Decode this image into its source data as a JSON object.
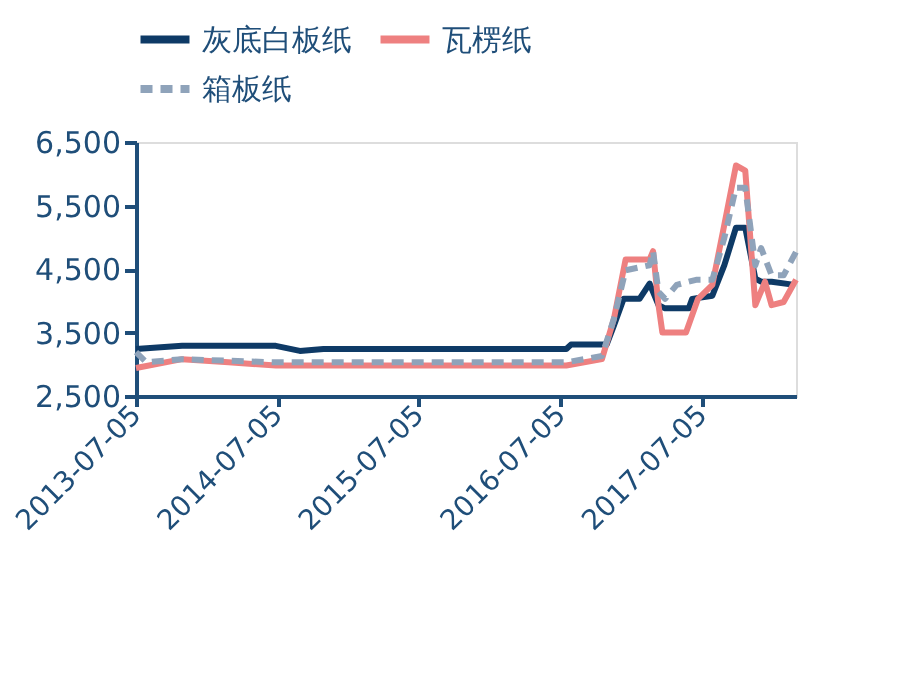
{
  "chart_data": {
    "type": "line",
    "xlim": [
      "2013-07-05",
      "2018-03-05"
    ],
    "xticks": [
      {
        "value": "2013-07-05",
        "label": "2013-07-05"
      },
      {
        "value": "2014-07-05",
        "label": "2014-07-05"
      },
      {
        "value": "2015-07-05",
        "label": "2015-07-05"
      },
      {
        "value": "2016-07-05",
        "label": "2016-07-05"
      },
      {
        "value": "2017-07-05",
        "label": "2017-07-05"
      }
    ],
    "ylim": [
      2500,
      6500
    ],
    "yticks": [
      {
        "value": 2500,
        "label": "2,500"
      },
      {
        "value": 3500,
        "label": "3,500"
      },
      {
        "value": 4500,
        "label": "4,500"
      },
      {
        "value": 5500,
        "label": "5,500"
      },
      {
        "value": 6500,
        "label": "6,500"
      }
    ],
    "grid": false,
    "legend": "top",
    "marker": "none",
    "series": [
      {
        "name": "灰底白板纸",
        "color": "#0e3a66",
        "line_style": "solid",
        "x": [
          "2013-07-05",
          "2013-11-01",
          "2014-07-01",
          "2014-09-01",
          "2014-11-01",
          "2016-07-20",
          "2016-08-01",
          "2016-11-01",
          "2016-11-20",
          "2016-12-15",
          "2017-01-25",
          "2017-02-20",
          "2017-03-15",
          "2017-04-01",
          "2017-06-01",
          "2017-06-10",
          "2017-08-01",
          "2017-09-01",
          "2017-10-01",
          "2017-10-25",
          "2017-11-20",
          "2017-12-05",
          "2018-01-01",
          "2018-03-01"
        ],
        "values": [
          3240,
          3290,
          3290,
          3210,
          3240,
          3240,
          3310,
          3310,
          3610,
          4030,
          4030,
          4270,
          3930,
          3880,
          3880,
          4030,
          4080,
          4560,
          5150,
          5150,
          4350,
          4300,
          4300,
          4250
        ]
      },
      {
        "name": "瓦楞纸",
        "color": "#ee8080",
        "line_style": "solid",
        "x": [
          "2013-07-05",
          "2013-11-01",
          "2014-03-01",
          "2014-07-01",
          "2016-07-20",
          "2016-10-20",
          "2016-11-20",
          "2016-12-20",
          "2017-02-20",
          "2017-03-01",
          "2017-03-15",
          "2017-03-25",
          "2017-05-25",
          "2017-06-25",
          "2017-08-01",
          "2017-09-01",
          "2017-10-01",
          "2017-10-25",
          "2017-11-20",
          "2017-12-15",
          "2018-01-01",
          "2018-02-01",
          "2018-03-05"
        ],
        "values": [
          2940,
          3080,
          3030,
          2980,
          2980,
          3080,
          3720,
          4650,
          4650,
          4780,
          3930,
          3500,
          3500,
          4030,
          4250,
          5200,
          6130,
          6050,
          3930,
          4300,
          3930,
          3980,
          4330
        ]
      },
      {
        "name": "箱板纸",
        "color": "#8fa3ba",
        "line_style": "dashed",
        "x": [
          "2013-07-05",
          "2013-08-01",
          "2013-11-01",
          "2014-07-01",
          "2016-07-20",
          "2016-10-20",
          "2016-11-20",
          "2016-12-20",
          "2017-02-20",
          "2017-03-01",
          "2017-03-15",
          "2017-04-01",
          "2017-05-01",
          "2017-06-20",
          "2017-08-01",
          "2017-09-01",
          "2017-10-01",
          "2017-10-25",
          "2017-11-20",
          "2017-12-05",
          "2018-01-01",
          "2018-02-01",
          "2018-03-05"
        ],
        "values": [
          3190,
          3030,
          3080,
          3030,
          3030,
          3130,
          3720,
          4480,
          4560,
          4780,
          4140,
          4030,
          4250,
          4330,
          4330,
          4990,
          5780,
          5780,
          4560,
          4830,
          4400,
          4400,
          4770
        ]
      }
    ]
  }
}
